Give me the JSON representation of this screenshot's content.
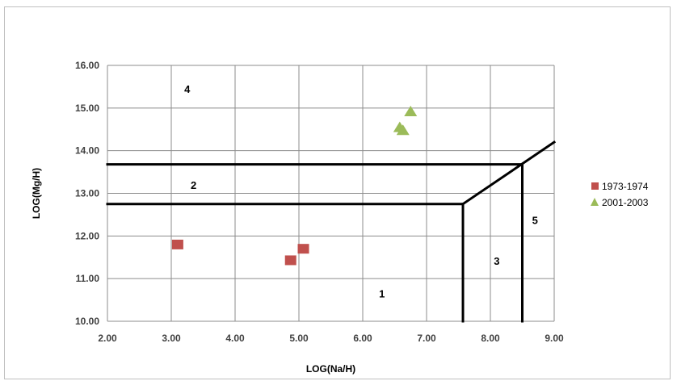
{
  "chart_data": {
    "type": "scatter",
    "title": "",
    "xlabel": "LOG(Na/H)",
    "ylabel": "LOG(Mg/H)",
    "xlim": [
      2.0,
      9.0
    ],
    "ylim": [
      10.0,
      16.0
    ],
    "x_ticks": [
      "2.00",
      "3.00",
      "4.00",
      "5.00",
      "6.00",
      "7.00",
      "8.00",
      "9.00"
    ],
    "y_ticks": [
      "10.00",
      "11.00",
      "12.00",
      "13.00",
      "14.00",
      "15.00",
      "16.00"
    ],
    "grid": true,
    "legend_position": "right",
    "series": [
      {
        "name": "1973-1974",
        "marker": "square",
        "color": "#c0504d",
        "points": [
          [
            3.1,
            11.8
          ],
          [
            4.87,
            11.43
          ],
          [
            5.07,
            11.7
          ]
        ]
      },
      {
        "name": "2001-2003",
        "marker": "triangle",
        "color": "#9bbb59",
        "points": [
          [
            6.58,
            14.55
          ],
          [
            6.63,
            14.48
          ],
          [
            6.75,
            14.92
          ]
        ]
      }
    ],
    "boundaries": [
      [
        [
          2.0,
          13.68
        ],
        [
          8.5,
          13.68
        ]
      ],
      [
        [
          2.0,
          12.75
        ],
        [
          7.57,
          12.75
        ]
      ],
      [
        [
          7.57,
          10.0
        ],
        [
          7.57,
          12.75
        ]
      ],
      [
        [
          8.5,
          10.0
        ],
        [
          8.5,
          13.68
        ]
      ],
      [
        [
          7.57,
          12.75
        ],
        [
          9.0,
          14.2
        ]
      ]
    ],
    "region_labels": [
      {
        "text": "1",
        "x": 6.3,
        "y": 10.65
      },
      {
        "text": "2",
        "x": 3.35,
        "y": 13.2
      },
      {
        "text": "3",
        "x": 8.1,
        "y": 11.42
      },
      {
        "text": "4",
        "x": 3.25,
        "y": 15.45
      },
      {
        "text": "5",
        "x": 8.7,
        "y": 12.38
      }
    ]
  }
}
